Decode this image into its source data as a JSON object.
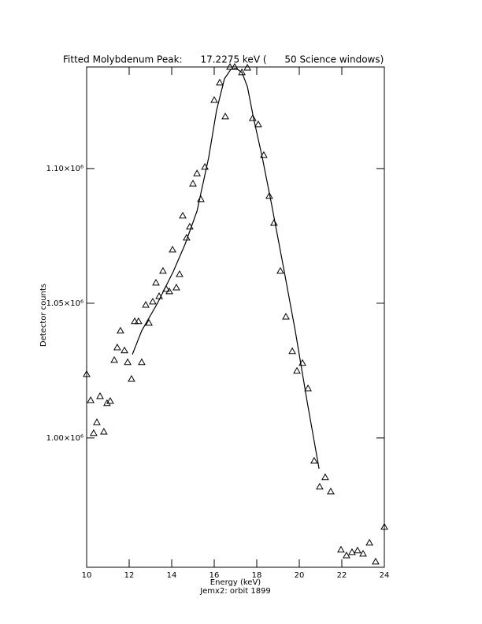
{
  "chart_data": {
    "type": "scatter",
    "title": "Fitted Molybdenum Peak:      17.2275 keV (      50 Science windows)",
    "x_label": "Energy (keV)",
    "y_label": "Detector counts",
    "subtitle": "Jemx2: orbit 1899",
    "color": "#000000",
    "xlim": [
      10,
      24
    ],
    "xticks": [
      10,
      12,
      14,
      16,
      18,
      20,
      22,
      24
    ],
    "ylim": [
      952000,
      1137700
    ],
    "yticks": [
      {
        "value": 1000000,
        "label": "1.00×10⁶"
      },
      {
        "value": 1050000,
        "label": "1.05×10⁶"
      },
      {
        "value": 1100000,
        "label": "1.10×10⁶"
      }
    ],
    "x": [
      10.0,
      10.19,
      10.33,
      10.48,
      10.63,
      10.81,
      10.96,
      11.11,
      11.3,
      11.44,
      11.59,
      11.78,
      11.93,
      12.11,
      12.26,
      12.44,
      12.59,
      12.78,
      12.93,
      13.11,
      13.26,
      13.41,
      13.59,
      13.74,
      13.89,
      14.04,
      14.22,
      14.37,
      14.52,
      14.7,
      14.85,
      15.0,
      15.19,
      15.37,
      15.56,
      16.0,
      16.26,
      16.52,
      16.74,
      16.96,
      17.3,
      17.56,
      17.81,
      18.07,
      18.33,
      18.59,
      18.81,
      19.11,
      19.37,
      19.67,
      19.89,
      20.15,
      20.41,
      20.7,
      20.96,
      21.22,
      21.48,
      21.96,
      22.22,
      22.48,
      22.74,
      23.0,
      23.3,
      23.59,
      24.0
    ],
    "values": [
      1023700,
      1014000,
      1001800,
      1005800,
      1015500,
      1002300,
      1012900,
      1013700,
      1028900,
      1033600,
      1039800,
      1032500,
      1028100,
      1021900,
      1043300,
      1043300,
      1028100,
      1049400,
      1042700,
      1050600,
      1057600,
      1052600,
      1062000,
      1055300,
      1054400,
      1069900,
      1055800,
      1060800,
      1082500,
      1074300,
      1078400,
      1094400,
      1098200,
      1088600,
      1100600,
      1125400,
      1131900,
      1119300,
      1137700,
      1137700,
      1135700,
      1137400,
      1118700,
      1116400,
      1105000,
      1089800,
      1079800,
      1062000,
      1045000,
      1032200,
      1024900,
      1027800,
      1018400,
      991500,
      981900,
      985400,
      980100,
      958500,
      956400,
      957600,
      958200,
      957000,
      961100,
      954100,
      967000
    ],
    "fit": {
      "x": [
        12.15,
        12.59,
        13.33,
        14.07,
        14.63,
        15.19,
        15.74,
        16.11,
        16.48,
        16.78,
        17.04,
        17.3,
        17.56,
        17.85,
        18.26,
        18.7,
        19.26,
        19.81,
        20.37,
        20.93
      ],
      "values": [
        1031000,
        1039800,
        1050000,
        1061700,
        1071900,
        1084200,
        1104100,
        1121600,
        1133300,
        1136800,
        1137100,
        1135700,
        1130400,
        1118700,
        1104100,
        1086600,
        1063200,
        1039800,
        1013500,
        988600
      ]
    }
  }
}
